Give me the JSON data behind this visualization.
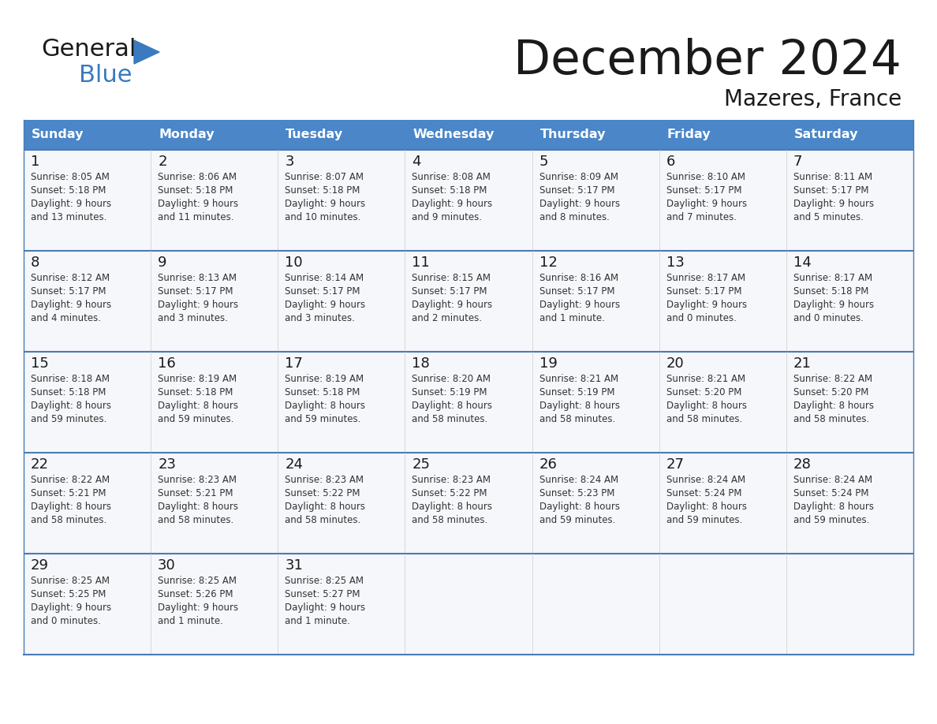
{
  "title": "December 2024",
  "subtitle": "Mazeres, France",
  "header_bg": "#4a86c8",
  "header_text": "#ffffff",
  "cell_bg": "#f5f7fa",
  "border_color": "#4a7bb5",
  "row_separator_color": "#4a7bb5",
  "day_headers": [
    "Sunday",
    "Monday",
    "Tuesday",
    "Wednesday",
    "Thursday",
    "Friday",
    "Saturday"
  ],
  "calendar_data": [
    [
      {
        "day": 1,
        "sunrise": "8:05 AM",
        "sunset": "5:18 PM",
        "daylight_h": "9 hours",
        "daylight_m": "and 13 minutes."
      },
      {
        "day": 2,
        "sunrise": "8:06 AM",
        "sunset": "5:18 PM",
        "daylight_h": "9 hours",
        "daylight_m": "and 11 minutes."
      },
      {
        "day": 3,
        "sunrise": "8:07 AM",
        "sunset": "5:18 PM",
        "daylight_h": "9 hours",
        "daylight_m": "and 10 minutes."
      },
      {
        "day": 4,
        "sunrise": "8:08 AM",
        "sunset": "5:18 PM",
        "daylight_h": "9 hours",
        "daylight_m": "and 9 minutes."
      },
      {
        "day": 5,
        "sunrise": "8:09 AM",
        "sunset": "5:17 PM",
        "daylight_h": "9 hours",
        "daylight_m": "and 8 minutes."
      },
      {
        "day": 6,
        "sunrise": "8:10 AM",
        "sunset": "5:17 PM",
        "daylight_h": "9 hours",
        "daylight_m": "and 7 minutes."
      },
      {
        "day": 7,
        "sunrise": "8:11 AM",
        "sunset": "5:17 PM",
        "daylight_h": "9 hours",
        "daylight_m": "and 5 minutes."
      }
    ],
    [
      {
        "day": 8,
        "sunrise": "8:12 AM",
        "sunset": "5:17 PM",
        "daylight_h": "9 hours",
        "daylight_m": "and 4 minutes."
      },
      {
        "day": 9,
        "sunrise": "8:13 AM",
        "sunset": "5:17 PM",
        "daylight_h": "9 hours",
        "daylight_m": "and 3 minutes."
      },
      {
        "day": 10,
        "sunrise": "8:14 AM",
        "sunset": "5:17 PM",
        "daylight_h": "9 hours",
        "daylight_m": "and 3 minutes."
      },
      {
        "day": 11,
        "sunrise": "8:15 AM",
        "sunset": "5:17 PM",
        "daylight_h": "9 hours",
        "daylight_m": "and 2 minutes."
      },
      {
        "day": 12,
        "sunrise": "8:16 AM",
        "sunset": "5:17 PM",
        "daylight_h": "9 hours",
        "daylight_m": "and 1 minute."
      },
      {
        "day": 13,
        "sunrise": "8:17 AM",
        "sunset": "5:17 PM",
        "daylight_h": "9 hours",
        "daylight_m": "and 0 minutes."
      },
      {
        "day": 14,
        "sunrise": "8:17 AM",
        "sunset": "5:18 PM",
        "daylight_h": "9 hours",
        "daylight_m": "and 0 minutes."
      }
    ],
    [
      {
        "day": 15,
        "sunrise": "8:18 AM",
        "sunset": "5:18 PM",
        "daylight_h": "8 hours",
        "daylight_m": "and 59 minutes."
      },
      {
        "day": 16,
        "sunrise": "8:19 AM",
        "sunset": "5:18 PM",
        "daylight_h": "8 hours",
        "daylight_m": "and 59 minutes."
      },
      {
        "day": 17,
        "sunrise": "8:19 AM",
        "sunset": "5:18 PM",
        "daylight_h": "8 hours",
        "daylight_m": "and 59 minutes."
      },
      {
        "day": 18,
        "sunrise": "8:20 AM",
        "sunset": "5:19 PM",
        "daylight_h": "8 hours",
        "daylight_m": "and 58 minutes."
      },
      {
        "day": 19,
        "sunrise": "8:21 AM",
        "sunset": "5:19 PM",
        "daylight_h": "8 hours",
        "daylight_m": "and 58 minutes."
      },
      {
        "day": 20,
        "sunrise": "8:21 AM",
        "sunset": "5:20 PM",
        "daylight_h": "8 hours",
        "daylight_m": "and 58 minutes."
      },
      {
        "day": 21,
        "sunrise": "8:22 AM",
        "sunset": "5:20 PM",
        "daylight_h": "8 hours",
        "daylight_m": "and 58 minutes."
      }
    ],
    [
      {
        "day": 22,
        "sunrise": "8:22 AM",
        "sunset": "5:21 PM",
        "daylight_h": "8 hours",
        "daylight_m": "and 58 minutes."
      },
      {
        "day": 23,
        "sunrise": "8:23 AM",
        "sunset": "5:21 PM",
        "daylight_h": "8 hours",
        "daylight_m": "and 58 minutes."
      },
      {
        "day": 24,
        "sunrise": "8:23 AM",
        "sunset": "5:22 PM",
        "daylight_h": "8 hours",
        "daylight_m": "and 58 minutes."
      },
      {
        "day": 25,
        "sunrise": "8:23 AM",
        "sunset": "5:22 PM",
        "daylight_h": "8 hours",
        "daylight_m": "and 58 minutes."
      },
      {
        "day": 26,
        "sunrise": "8:24 AM",
        "sunset": "5:23 PM",
        "daylight_h": "8 hours",
        "daylight_m": "and 59 minutes."
      },
      {
        "day": 27,
        "sunrise": "8:24 AM",
        "sunset": "5:24 PM",
        "daylight_h": "8 hours",
        "daylight_m": "and 59 minutes."
      },
      {
        "day": 28,
        "sunrise": "8:24 AM",
        "sunset": "5:24 PM",
        "daylight_h": "8 hours",
        "daylight_m": "and 59 minutes."
      }
    ],
    [
      {
        "day": 29,
        "sunrise": "8:25 AM",
        "sunset": "5:25 PM",
        "daylight_h": "9 hours",
        "daylight_m": "and 0 minutes."
      },
      {
        "day": 30,
        "sunrise": "8:25 AM",
        "sunset": "5:26 PM",
        "daylight_h": "9 hours",
        "daylight_m": "and 1 minute."
      },
      {
        "day": 31,
        "sunrise": "8:25 AM",
        "sunset": "5:27 PM",
        "daylight_h": "9 hours",
        "daylight_m": "and 1 minute."
      },
      null,
      null,
      null,
      null
    ]
  ],
  "logo_general_color": "#1a1a1a",
  "logo_blue_color": "#3a7abf"
}
